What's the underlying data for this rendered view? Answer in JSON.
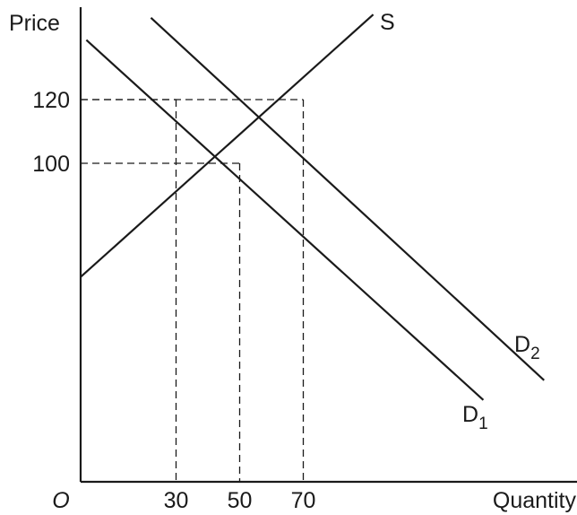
{
  "chart_data": {
    "type": "line",
    "ylabel": "Price",
    "xlabel": "Quantity",
    "origin_label": "O",
    "x_ticks": [
      {
        "value": 30,
        "label": "30"
      },
      {
        "value": 50,
        "label": "50"
      },
      {
        "value": 70,
        "label": "70"
      }
    ],
    "y_ticks": [
      {
        "value": 100,
        "label": "100"
      },
      {
        "value": 120,
        "label": "120"
      }
    ],
    "series": [
      {
        "id": "S",
        "name": "S",
        "subscript": "",
        "points": [
          [
            0,
            64.3
          ],
          [
            92,
            146.7
          ]
        ]
      },
      {
        "id": "D1",
        "name": "D",
        "subscript": "1",
        "points": [
          [
            1.8,
            138.7
          ],
          [
            126.6,
            25.7
          ]
        ]
      },
      {
        "id": "D2",
        "name": "D",
        "subscript": "2",
        "points": [
          [
            22.1,
            145.7
          ],
          [
            145.7,
            31.9
          ]
        ]
      }
    ],
    "guides": [
      {
        "x": 30,
        "y": 120
      },
      {
        "x": 50,
        "y": 100
      },
      {
        "x": 70,
        "y": 120
      }
    ],
    "grid": false
  }
}
